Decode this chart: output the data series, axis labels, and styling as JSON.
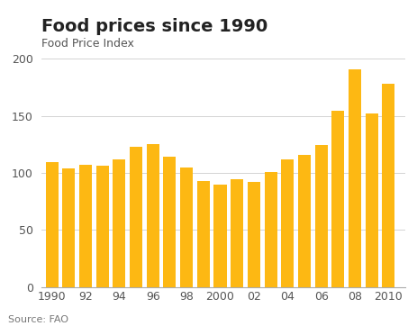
{
  "years": [
    1990,
    1991,
    1992,
    1993,
    1994,
    1995,
    1996,
    1997,
    1998,
    1999,
    2000,
    2001,
    2002,
    2003,
    2004,
    2005,
    2006,
    2007,
    2008,
    2009,
    2010
  ],
  "values": [
    109,
    104,
    107,
    106,
    112,
    123,
    125,
    114,
    105,
    93,
    90,
    94,
    92,
    101,
    112,
    116,
    124,
    154,
    191,
    152,
    178
  ],
  "bar_color": "#FDB813",
  "title": "Food prices since 1990",
  "ylabel": "Food Price Index",
  "source": "Source: FAO",
  "ylim": [
    0,
    200
  ],
  "yticks": [
    0,
    50,
    100,
    150,
    200
  ],
  "xtick_labels": [
    "1990",
    "92",
    "94",
    "96",
    "98",
    "2000",
    "02",
    "04",
    "06",
    "08",
    "2010"
  ],
  "xtick_positions": [
    1990,
    1992,
    1994,
    1996,
    1998,
    2000,
    2002,
    2004,
    2006,
    2008,
    2010
  ],
  "title_fontsize": 14,
  "label_fontsize": 9,
  "tick_fontsize": 9,
  "source_fontsize": 8,
  "background_color": "#ffffff",
  "grid_color": "#cccccc"
}
